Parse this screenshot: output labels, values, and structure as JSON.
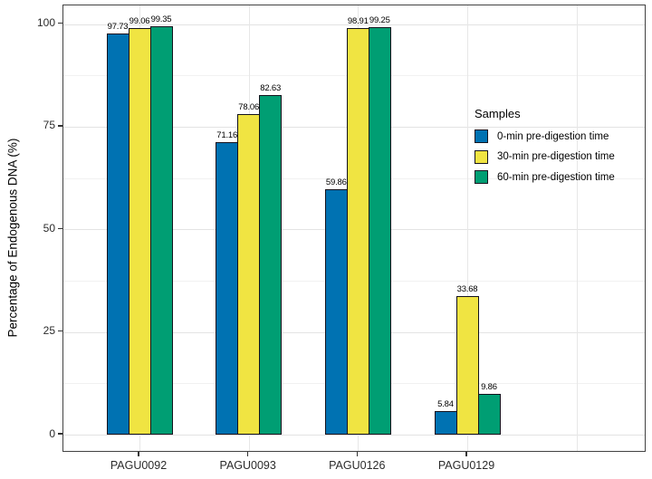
{
  "chart_data": {
    "type": "bar",
    "title": "",
    "ylabel": "Percentage of Endogenous DNA (%)",
    "xlabel": "",
    "categories": [
      "PAGU0092",
      "PAGU0093",
      "PAGU0126",
      "PAGU0129"
    ],
    "series": [
      {
        "name": "0-min pre-digestion time",
        "color": "#0072B2",
        "values": [
          97.73,
          71.16,
          59.86,
          5.84
        ]
      },
      {
        "name": "30-min pre-digestion time",
        "color": "#F0E442",
        "values": [
          99.06,
          78.06,
          98.91,
          33.68
        ]
      },
      {
        "name": "60-min pre-digestion time",
        "color": "#009E73",
        "values": [
          99.35,
          82.63,
          99.25,
          9.86
        ]
      }
    ],
    "yticks": [
      0,
      25,
      50,
      75,
      100
    ],
    "ylim": [
      0,
      100
    ],
    "bar_value_labels": true,
    "grid": {
      "horizontal_major": true,
      "horizontal_minor": true,
      "vertical_major": true
    },
    "legend": {
      "title": "Samples",
      "position": "right-inside"
    }
  }
}
